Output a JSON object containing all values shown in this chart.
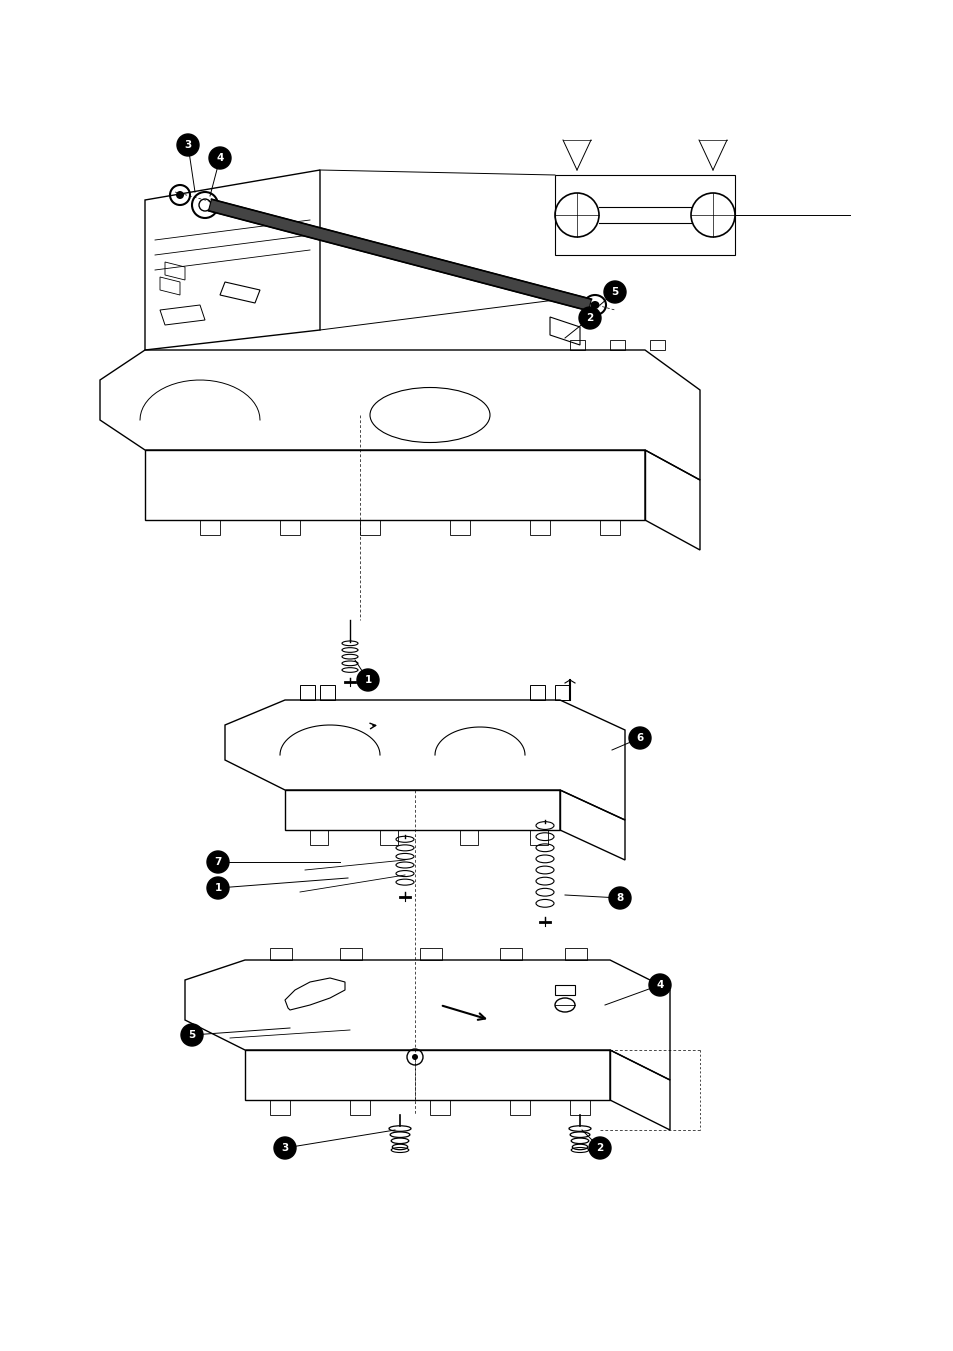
{
  "bg_color": "#ffffff",
  "lc": "#000000",
  "fig_width": 9.54,
  "fig_height": 13.51,
  "dpi": 100,
  "callout_size": 0.012,
  "callout_font_size": 7.5
}
